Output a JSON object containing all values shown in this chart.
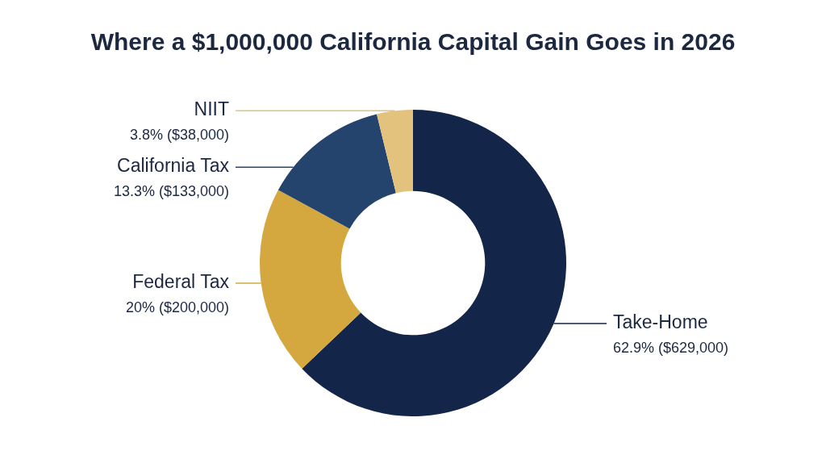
{
  "chart_data": {
    "type": "donut",
    "title": "Where a $1,000,000 California Capital Gain Goes in 2026",
    "categories": [
      "Take-Home",
      "Federal Tax",
      "California Tax",
      "NIIT"
    ],
    "values": [
      62.9,
      20,
      13.3,
      3.8
    ],
    "value_labels": [
      "62.9% ($629,000)",
      "20% ($200,000)",
      "13.3% ($133,000)",
      "3.8% ($38,000)"
    ],
    "colors": [
      "#14254a",
      "#d4a83f",
      "#24446e",
      "#e2c27c"
    ]
  }
}
